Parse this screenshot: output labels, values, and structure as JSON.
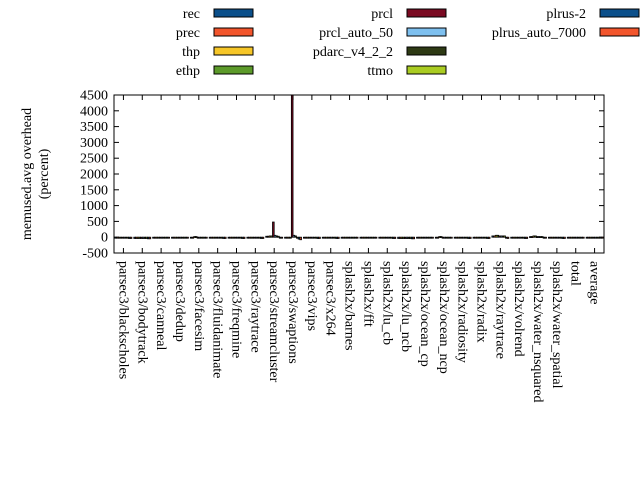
{
  "chart_data": {
    "type": "bar",
    "ylabel_line1": "memused.avg overhead",
    "ylabel_line2": "(percent)",
    "ylim": [
      -500,
      4500
    ],
    "yticks": [
      -500,
      0,
      500,
      1000,
      1500,
      2000,
      2500,
      3000,
      3500,
      4000,
      4500
    ],
    "legend_position": "top",
    "categories": [
      "parsec3/blackscholes",
      "parsec3/bodytrack",
      "parsec3/canneal",
      "parsec3/dedup",
      "parsec3/facesim",
      "parsec3/fluidanimate",
      "parsec3/freqmine",
      "parsec3/raytrace",
      "parsec3/streamcluster",
      "parsec3/swaptions",
      "parsec3/vips",
      "parsec3/x264",
      "splash2x/barnes",
      "splash2x/fft",
      "splash2x/lu_cb",
      "splash2x/lu_ncb",
      "splash2x/ocean_cp",
      "splash2x/ocean_ncp",
      "splash2x/radiosity",
      "splash2x/radix",
      "splash2x/raytrace",
      "splash2x/volrend",
      "splash2x/water_nsquared",
      "splash2x/water_spatial",
      "total",
      "average"
    ],
    "series": [
      {
        "name": "rec",
        "color": "#0b4f8a",
        "values": [
          -30,
          -40,
          -20,
          -20,
          -10,
          -30,
          -30,
          -30,
          30,
          -10,
          -30,
          -30,
          -20,
          -20,
          -30,
          -40,
          -20,
          -10,
          -30,
          -30,
          40,
          -30,
          20,
          -30,
          -20,
          -20
        ]
      },
      {
        "name": "prec",
        "color": "#f2552c",
        "values": [
          -30,
          -40,
          -20,
          -20,
          -10,
          -30,
          -30,
          -30,
          30,
          -10,
          -30,
          -30,
          -20,
          -20,
          -30,
          -40,
          -20,
          -10,
          -30,
          -30,
          40,
          -30,
          20,
          -30,
          -20,
          -20
        ]
      },
      {
        "name": "thp",
        "color": "#f6c628",
        "values": [
          -30,
          -40,
          -20,
          -20,
          20,
          -30,
          -30,
          -30,
          40,
          -10,
          -30,
          -30,
          -20,
          -20,
          -30,
          -40,
          -20,
          20,
          -30,
          -30,
          60,
          -30,
          40,
          -30,
          -20,
          -20
        ]
      },
      {
        "name": "ethp",
        "color": "#5c9a2a",
        "values": [
          -30,
          -40,
          -20,
          -20,
          20,
          -30,
          -30,
          -30,
          40,
          -10,
          -30,
          -30,
          -20,
          -20,
          -30,
          -40,
          -20,
          20,
          -30,
          -30,
          60,
          -30,
          40,
          -30,
          -20,
          -20
        ]
      },
      {
        "name": "prcl",
        "color": "#7a0a22",
        "values": [
          -30,
          -40,
          -20,
          -20,
          -10,
          -30,
          -30,
          -30,
          480,
          4500,
          -30,
          -30,
          -20,
          -20,
          -30,
          -40,
          -20,
          -10,
          -30,
          -30,
          40,
          -30,
          20,
          -30,
          -20,
          -20
        ]
      },
      {
        "name": "prcl_auto_50",
        "color": "#7ec0ef",
        "values": [
          -30,
          -40,
          -20,
          -20,
          -10,
          -30,
          -30,
          -30,
          60,
          60,
          -30,
          -30,
          -20,
          -20,
          -30,
          -40,
          -20,
          -10,
          -30,
          -30,
          40,
          -30,
          20,
          -30,
          -20,
          -20
        ]
      },
      {
        "name": "pdarc_v4_2_2",
        "color": "#2e3a14",
        "values": [
          -30,
          -40,
          -20,
          -20,
          -10,
          -30,
          -30,
          -30,
          40,
          40,
          -30,
          -30,
          -20,
          -20,
          -30,
          -40,
          -20,
          -10,
          -30,
          -30,
          40,
          -30,
          20,
          -30,
          -20,
          -20
        ]
      },
      {
        "name": "ttmo",
        "color": "#aacc22",
        "values": [
          -30,
          -40,
          -20,
          -20,
          -10,
          -30,
          -30,
          -30,
          30,
          -20,
          -30,
          -30,
          -20,
          -20,
          -30,
          -40,
          -20,
          -10,
          -30,
          -30,
          40,
          -30,
          20,
          -30,
          -20,
          -20
        ]
      },
      {
        "name": "plrus-2",
        "color": "#0b4f8a",
        "values": [
          -40,
          -50,
          -30,
          -30,
          -20,
          -40,
          -40,
          -40,
          -20,
          -60,
          -40,
          -40,
          -30,
          -30,
          -40,
          -50,
          -30,
          -20,
          -40,
          -40,
          -30,
          -40,
          -20,
          -40,
          -30,
          -30
        ]
      },
      {
        "name": "plrus_auto_7000",
        "color": "#f2552c",
        "values": [
          -40,
          -50,
          -30,
          -30,
          -20,
          -40,
          -40,
          -40,
          -20,
          -80,
          -40,
          -40,
          -30,
          -30,
          -40,
          -50,
          -30,
          -20,
          -40,
          -40,
          -40,
          -40,
          -30,
          -40,
          -30,
          -30
        ]
      }
    ]
  }
}
